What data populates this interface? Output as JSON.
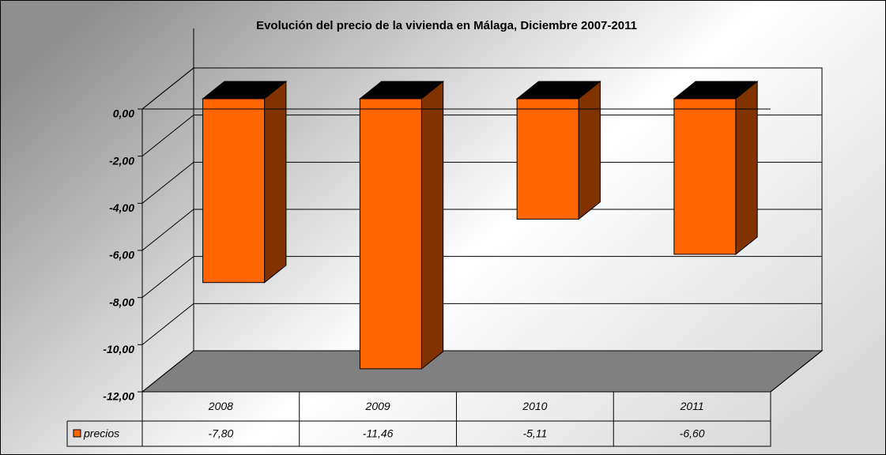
{
  "chart_data": {
    "type": "bar3d",
    "title": "Evolución del precio de la vivienda en Málaga, Diciembre 2007-2011",
    "categories": [
      "2008",
      "2009",
      "2010",
      "2011"
    ],
    "series": [
      {
        "name": "precios",
        "color": "#ff6600",
        "values": [
          -7.8,
          -11.46,
          -5.11,
          -6.6
        ],
        "value_labels": [
          "-7,80",
          "-11,46",
          "-5,11",
          "-6,60"
        ]
      }
    ],
    "ylim": [
      -12,
      0
    ],
    "yticks": [
      {
        "value": 0,
        "label": "0,00"
      },
      {
        "value": -2,
        "label": "-2,00"
      },
      {
        "value": -4,
        "label": "-4,00"
      },
      {
        "value": -6,
        "label": "-6,00"
      },
      {
        "value": -8,
        "label": "-8,00"
      },
      {
        "value": -10,
        "label": "-10,00"
      },
      {
        "value": -12,
        "label": "-12,00"
      }
    ],
    "grid": true
  }
}
